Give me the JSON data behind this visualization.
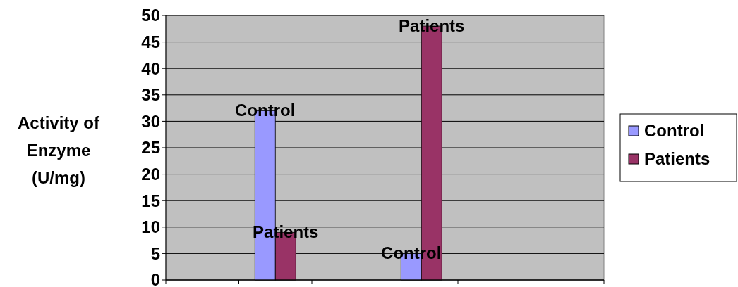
{
  "chart_data": {
    "type": "bar",
    "ylabel": "Activity of Enzyme (U/mg)",
    "categories": [
      null,
      null,
      null,
      null,
      null,
      null
    ],
    "series": [
      {
        "name": "Control",
        "color": "#9999ff",
        "values": [
          null,
          32,
          null,
          5,
          null,
          null
        ]
      },
      {
        "name": "Patients",
        "color": "#993366",
        "values": [
          null,
          9,
          null,
          48,
          null,
          null
        ]
      }
    ],
    "ylim": [
      0,
      50
    ],
    "yticks": [
      0,
      5,
      10,
      15,
      20,
      25,
      30,
      35,
      40,
      45,
      50
    ],
    "grid": "y",
    "legend": "right"
  }
}
